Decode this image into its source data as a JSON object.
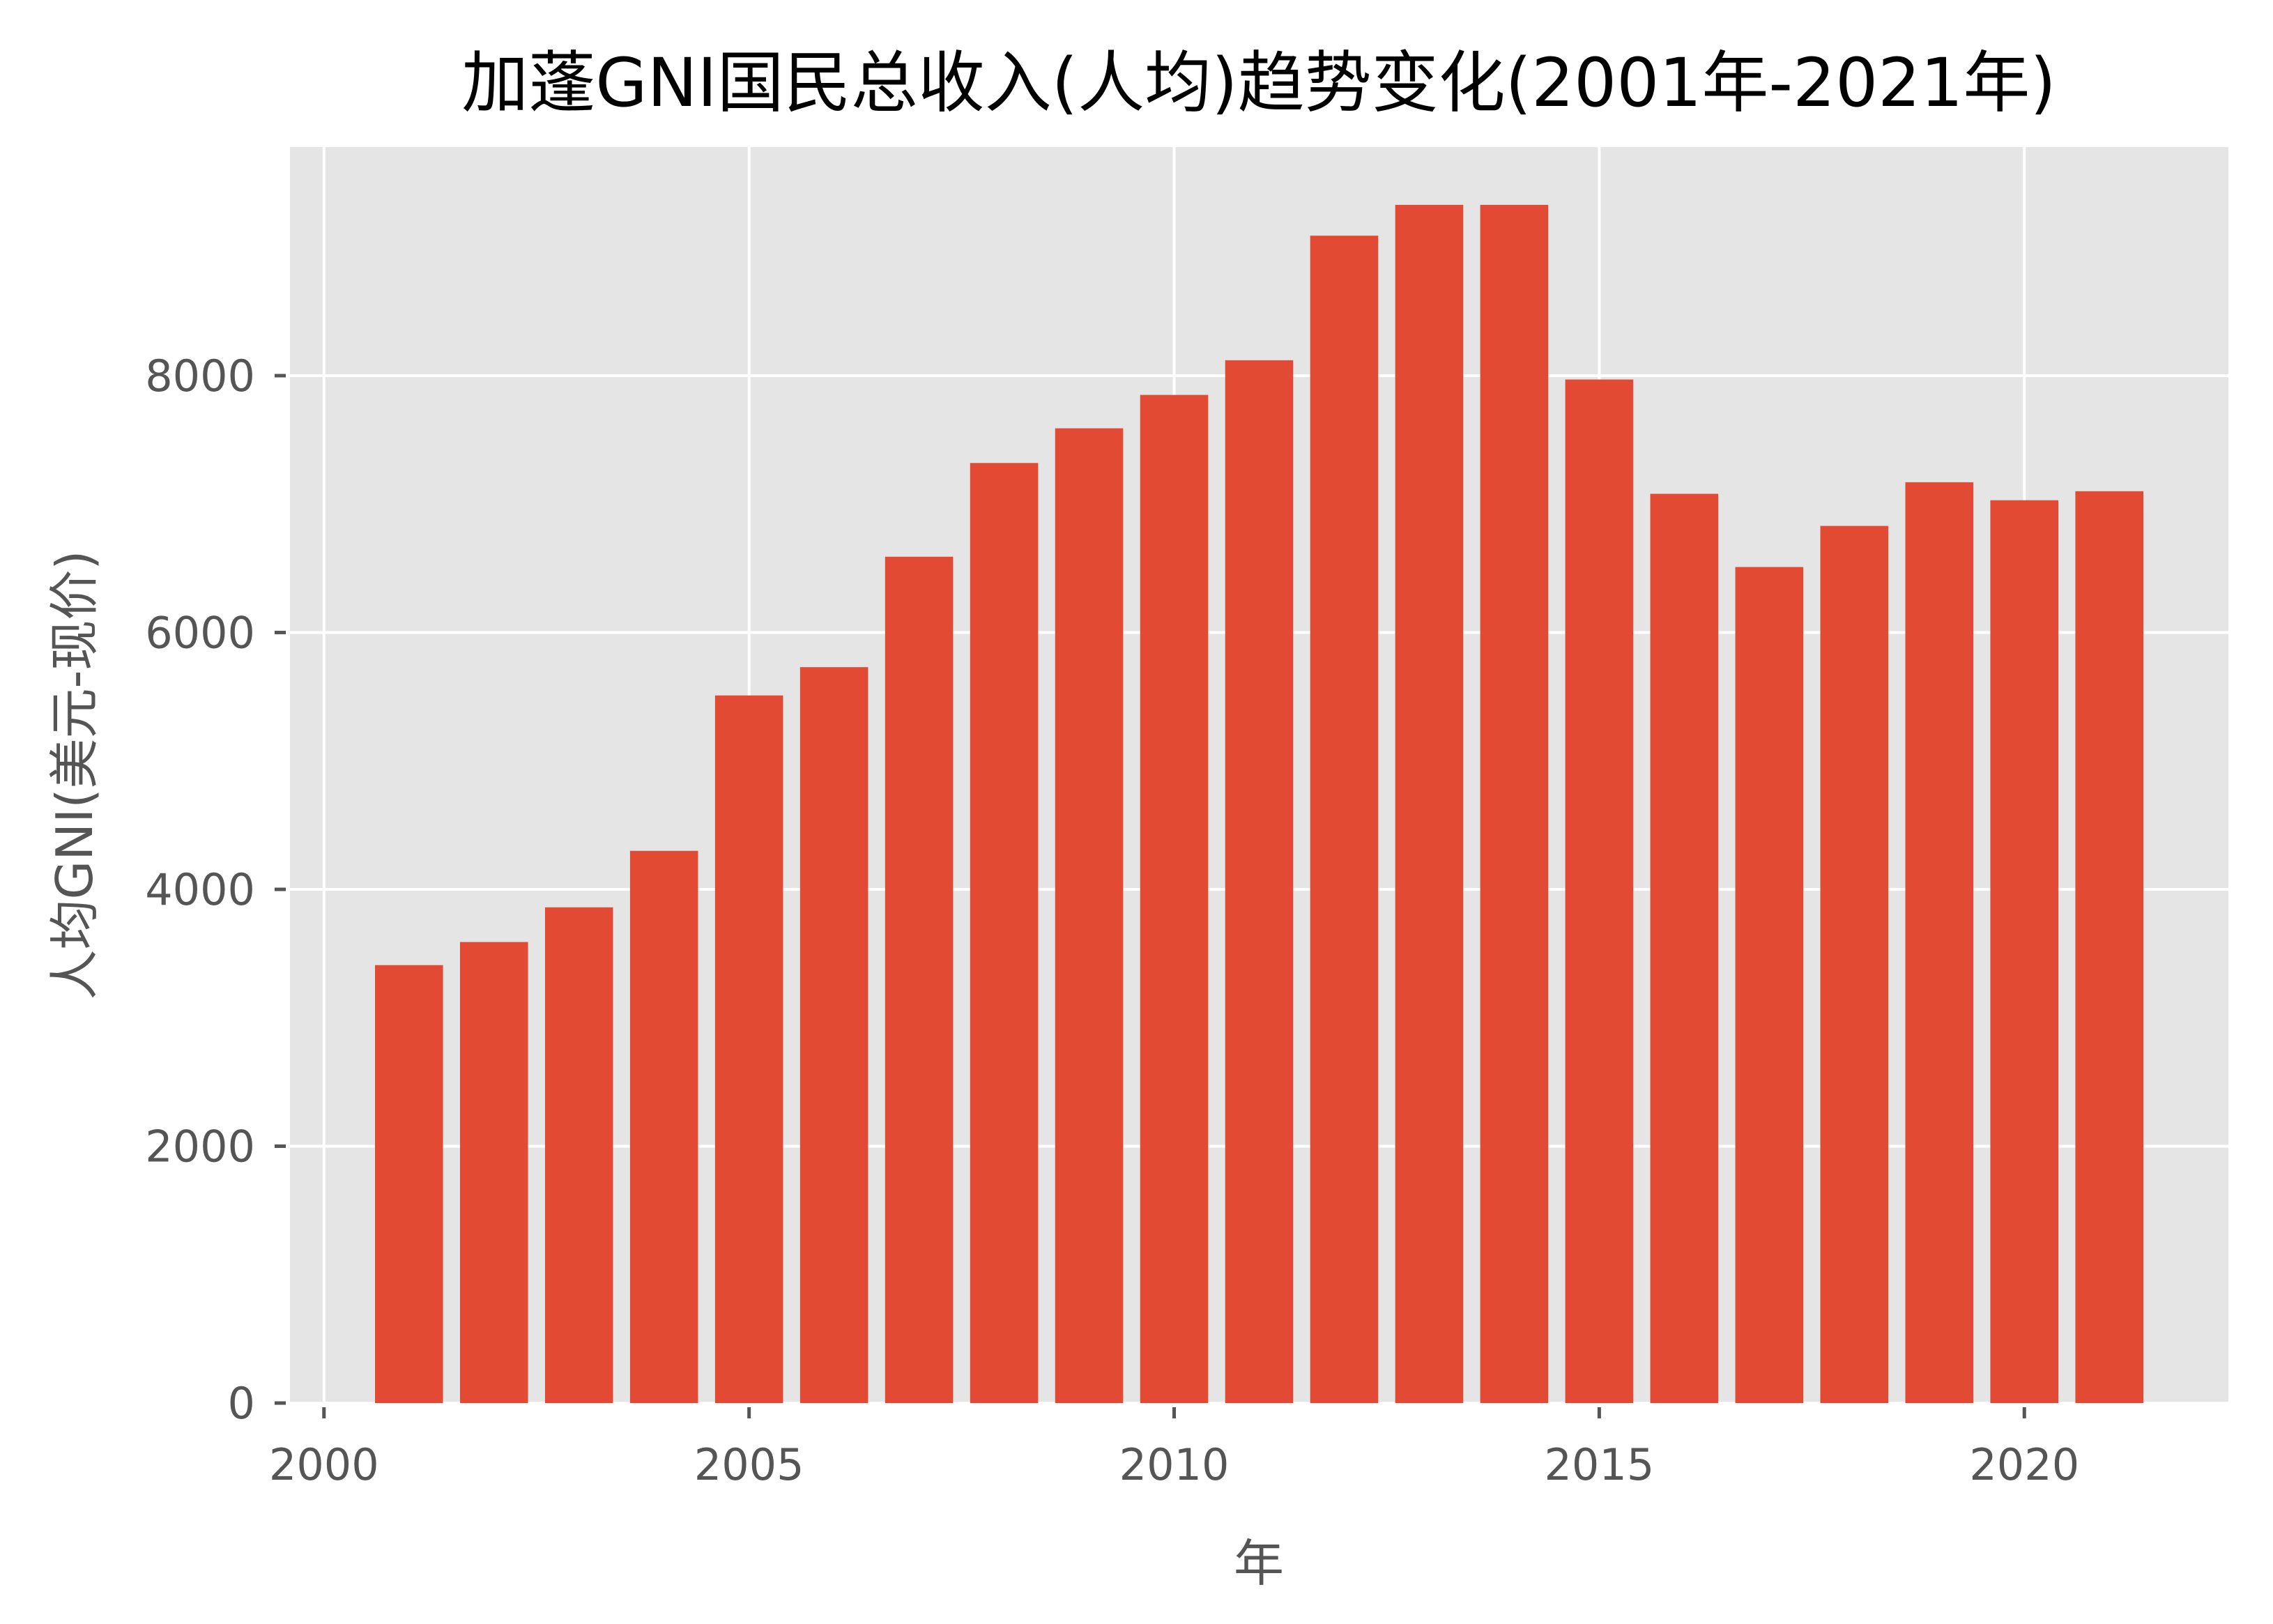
{
  "chart_data": {
    "type": "bar",
    "title": "加蓬GNI国民总收入(人均)趋势变化(2001年-2021年)",
    "xlabel": "年",
    "ylabel": "人均GNI(美元-现价)",
    "categories": [
      2001,
      2002,
      2003,
      2004,
      2005,
      2006,
      2007,
      2008,
      2009,
      2010,
      2011,
      2012,
      2013,
      2014,
      2015,
      2016,
      2017,
      2018,
      2019,
      2020,
      2021
    ],
    "values": [
      3410,
      3590,
      3860,
      4300,
      5510,
      5730,
      6590,
      7320,
      7590,
      7850,
      8120,
      9090,
      9330,
      9330,
      7970,
      7080,
      6510,
      6830,
      7170,
      7030,
      7100
    ],
    "xlim": [
      1999.6,
      2022.4
    ],
    "ylim": [
      0,
      9780
    ],
    "xticks": [
      2000,
      2005,
      2010,
      2015,
      2020
    ],
    "yticks": [
      0,
      2000,
      4000,
      6000,
      8000
    ],
    "grid": true,
    "legend": null,
    "bar_width": 0.8,
    "style": "ggplot"
  },
  "colors": {
    "bar": "#E24A33",
    "plot_background": "#E5E5E5",
    "grid": "#FFFFFF",
    "tick_text": "#555555",
    "title_text": "#000000"
  }
}
